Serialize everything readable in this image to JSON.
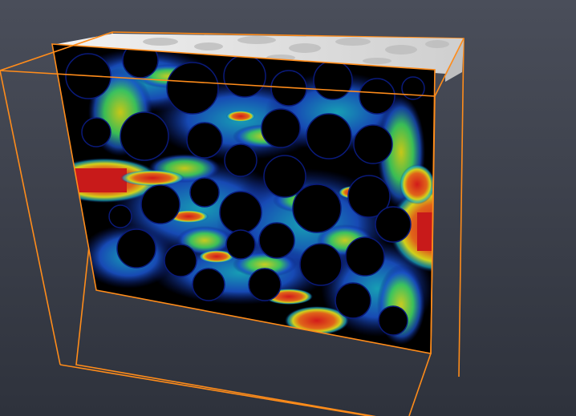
{
  "viewport": {
    "background_top": "#4a4e5a",
    "background_bottom": "#2e323c"
  },
  "volume": {
    "bounding_box_color": "#ff8c1a",
    "slice_background": "#000000",
    "porous_top_color": "#e6e6e6",
    "colormap": [
      "#0a1a7a",
      "#1a52c8",
      "#1ab0c8",
      "#3cc85a",
      "#d2d21a",
      "#e0641a",
      "#c81a1a"
    ]
  }
}
